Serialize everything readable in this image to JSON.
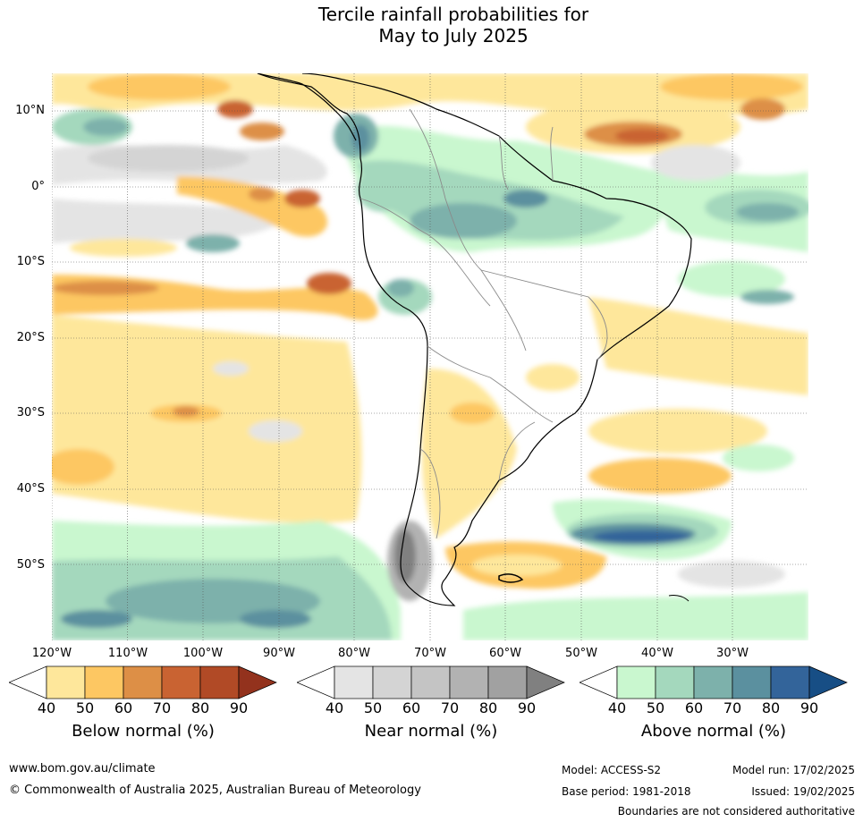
{
  "title": {
    "line1": "Tercile rainfall probabilities for",
    "line2": "May to July 2025"
  },
  "map": {
    "lat_labels": [
      "10°N",
      "0°",
      "10°S",
      "20°S",
      "30°S",
      "40°S",
      "50°S"
    ],
    "lon_labels": [
      "120°W",
      "110°W",
      "100°W",
      "90°W",
      "80°W",
      "70°W",
      "60°W",
      "50°W",
      "40°W",
      "30°W"
    ]
  },
  "legends": [
    {
      "title": "Below normal (%)",
      "ticks": [
        "40",
        "50",
        "60",
        "70",
        "80",
        "90"
      ],
      "colors": [
        "#ffffff",
        "#fee79b",
        "#fdc762",
        "#dd8f46",
        "#c96332",
        "#b14a26",
        "#93321d"
      ]
    },
    {
      "title": "Near normal (%)",
      "ticks": [
        "40",
        "50",
        "60",
        "70",
        "80",
        "90"
      ],
      "colors": [
        "#ffffff",
        "#e4e4e4",
        "#d4d4d4",
        "#c4c4c4",
        "#b2b2b2",
        "#a1a1a1",
        "#808080"
      ]
    },
    {
      "title": "Above normal (%)",
      "ticks": [
        "40",
        "50",
        "60",
        "70",
        "80",
        "90"
      ],
      "colors": [
        "#ffffff",
        "#c9f7cf",
        "#a4d8bd",
        "#7db1ab",
        "#5b909f",
        "#33649a",
        "#174e85"
      ]
    }
  ],
  "footer": {
    "website": "www.bom.gov.au/climate",
    "copyright": "© Commonwealth of Australia 2025, Australian Bureau of Meteorology",
    "model": "Model: ACCESS-S2",
    "base_period": "Base period: 1981-2018",
    "model_run": "Model run: 17/02/2025",
    "issued": "Issued: 19/02/2025",
    "disclaimer": "Boundaries are not considered authoritative"
  }
}
